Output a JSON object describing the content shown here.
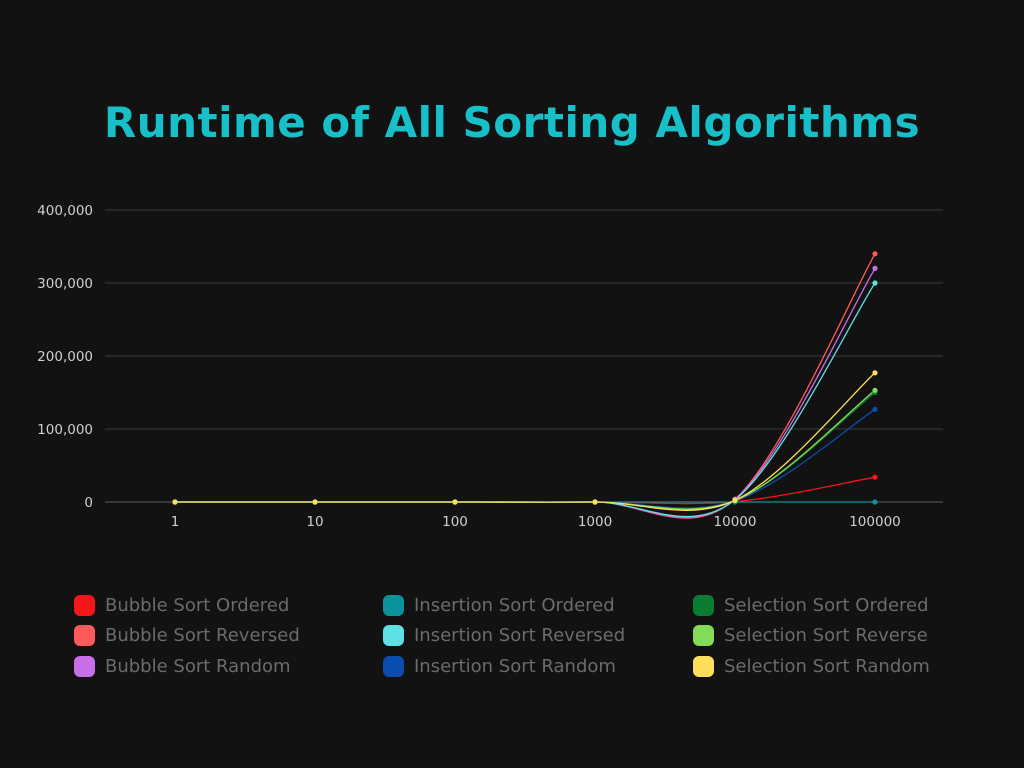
{
  "colors": {
    "background": "#121212",
    "title": "#17bfc9",
    "grid": "#3a3a3a",
    "tick_label": "#cfcfcf",
    "legend_text": "#6b6b6b"
  },
  "chart_data": {
    "type": "line",
    "title": "Runtime of All Sorting Algorithms",
    "xlabel": "",
    "ylabel": "",
    "categories": [
      "1",
      "10",
      "100",
      "1000",
      "10000",
      "100000"
    ],
    "y_ticks": [
      "0",
      "100,000",
      "200,000",
      "300,000",
      "400,000"
    ],
    "ylim": [
      0,
      400000
    ],
    "grid": true,
    "smooth": true,
    "legend_position": "bottom",
    "series": [
      {
        "name": "Bubble Sort Ordered",
        "color": "#f5161a",
        "values": [
          0,
          0,
          0,
          0,
          500,
          34000
        ]
      },
      {
        "name": "Bubble Sort Reversed",
        "color": "#ff5959",
        "values": [
          0,
          0,
          0,
          0,
          4000,
          340000
        ]
      },
      {
        "name": "Bubble Sort Random",
        "color": "#c86ee8",
        "values": [
          0,
          0,
          0,
          0,
          3500,
          320000
        ]
      },
      {
        "name": "Insertion Sort Ordered",
        "color": "#0a939a",
        "values": [
          0,
          0,
          0,
          0,
          0,
          0
        ]
      },
      {
        "name": "Insertion Sort Reversed",
        "color": "#5ee0e4",
        "values": [
          0,
          0,
          0,
          0,
          3000,
          300000
        ]
      },
      {
        "name": "Insertion Sort Random",
        "color": "#0b4dae",
        "values": [
          0,
          0,
          0,
          0,
          1500,
          127000
        ]
      },
      {
        "name": "Selection Sort Ordered",
        "color": "#0b7d33",
        "values": [
          0,
          0,
          0,
          0,
          1800,
          150000
        ]
      },
      {
        "name": "Selection Sort Reverse",
        "color": "#83db57",
        "values": [
          0,
          0,
          0,
          0,
          2000,
          153000
        ]
      },
      {
        "name": "Selection Sort Random",
        "color": "#ffde59",
        "values": [
          0,
          0,
          0,
          0,
          2200,
          177000
        ]
      }
    ]
  }
}
